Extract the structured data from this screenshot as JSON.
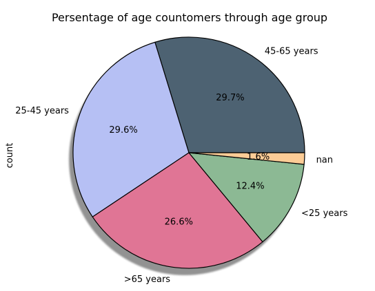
{
  "chart_data": {
    "type": "pie",
    "title": "Persentage of age countomers through age group",
    "ylabel": "count",
    "legend": "none",
    "shadow": true,
    "slices": [
      {
        "label": "45-65 years",
        "value": 29.7,
        "pct_label": "29.7%",
        "color": "#4d6272"
      },
      {
        "label": "25-45 years",
        "value": 29.6,
        "pct_label": "29.6%",
        "color": "#b6c0f4"
      },
      {
        "label": ">65 years",
        "value": 26.6,
        "pct_label": "26.6%",
        "color": "#e07595"
      },
      {
        "label": "<25 years",
        "value": 12.4,
        "pct_label": "12.4%",
        "color": "#8cb994"
      },
      {
        "label": "nan",
        "value": 1.6,
        "pct_label": "1.6%",
        "color": "#fccc96"
      }
    ]
  }
}
